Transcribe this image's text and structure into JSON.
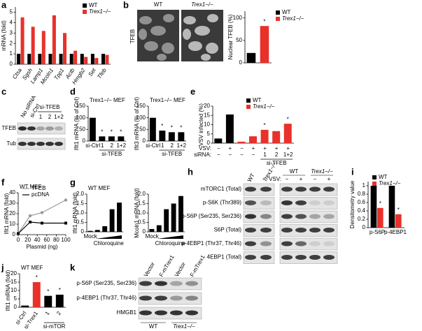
{
  "panels": [
    "a",
    "b",
    "c",
    "d",
    "e",
    "f",
    "g",
    "h",
    "i",
    "j",
    "k"
  ],
  "images": {
    "row_label": "TFEB",
    "labels": [
      "WT",
      "Trex1−/−"
    ]
  },
  "blots": {
    "c": {
      "columns": [
        "No siRNA",
        "si-Ctrl",
        "1",
        "2",
        "1+2"
      ],
      "group": "si-TFEB",
      "rows": [
        "TFEB",
        "Tub"
      ]
    },
    "h": {
      "rows": [
        "mTORC1 (Total)",
        "p-S6K (Thr389)",
        "p-S6P (Ser235, Ser236)",
        "S6P (Total)",
        "p-4EBP1 (Thr37, Thr46)",
        "4EBP1 (Total)"
      ],
      "left_columns": [
        "WT",
        "Trex1−/−"
      ],
      "right_columns": [
        "WT",
        "Trex1−/−"
      ],
      "treatment_label": "VSV:",
      "treatment": [
        "−",
        "+",
        "−",
        "+"
      ]
    },
    "k": {
      "columns": [
        "Vector",
        "F-mTrex1",
        "Vector",
        "F-mTrex1"
      ],
      "groups": [
        "WT",
        "Trex1−/−"
      ],
      "rows": [
        "p-S6P (Ser235, Ser236)",
        "p-4EBP1 (Thr37, Thr46)",
        "HMGB1"
      ]
    }
  },
  "chart_data": [
    {
      "type": "bar",
      "ylabel": "mRNA (fold)",
      "categories": [
        "Ctsa",
        "Sgsh",
        "Lamp1",
        "Mcoln1",
        "Tpp1",
        "Actb",
        "Hmgb2",
        "Set",
        "Tfeb"
      ],
      "series": [
        {
          "name": "WT",
          "color": "#000000",
          "values": [
            1,
            1,
            1,
            1,
            1,
            1,
            1,
            1,
            1
          ]
        },
        {
          "name": "Trex1−/−",
          "color": "#e8312a",
          "values": [
            4.5,
            3.6,
            3.2,
            4.7,
            3.0,
            1.3,
            0.7,
            0.6,
            0.9
          ]
        }
      ],
      "ylim": [
        0,
        5.5
      ],
      "yticks": [
        0,
        1,
        2,
        3,
        4,
        5
      ]
    },
    {
      "type": "bar",
      "ylabel": "Nuclear TFEB (%)",
      "categories": [
        null,
        null
      ],
      "series": [
        {
          "name": "WT",
          "color": "#000000",
          "values": [
            22,
            null
          ]
        },
        {
          "name": "Trex1−/−",
          "color": "#e8312a",
          "values": [
            null,
            82
          ],
          "stars": [
            null,
            "*"
          ]
        }
      ],
      "ylim": [
        0,
        115
      ],
      "yticks": [
        0,
        50,
        100
      ]
    },
    {
      "type": "bar",
      "title": "Trex1−/− MEF",
      "ylabel": "Ifit1 mRNA (% of Ctrl)",
      "categories": [
        "si-Ctrl",
        "1",
        "2",
        "1+2"
      ],
      "group_label": "si-TFEB",
      "series": [
        {
          "color": "#000000",
          "values": [
            100,
            20,
            20,
            20
          ],
          "stars": [
            null,
            "*",
            "*",
            "*"
          ]
        }
      ],
      "ylim": [
        0,
        150
      ],
      "yticks": [
        0,
        50,
        100,
        150
      ]
    },
    {
      "type": "bar",
      "title": "Trex1−/− MEF",
      "ylabel": "Ifit3 mRNA (% of Ctrl)",
      "categories": [
        "si-Ctrl",
        "1",
        "2",
        "1+2"
      ],
      "group_label": "si-TFEB",
      "series": [
        {
          "color": "#000000",
          "values": [
            100,
            45,
            38,
            38
          ],
          "stars": [
            null,
            "*",
            "*",
            "*"
          ]
        }
      ],
      "ylim": [
        0,
        150
      ],
      "yticks": [
        0,
        50,
        100,
        150
      ]
    },
    {
      "type": "bar",
      "ylabel": "VSV infected (%)",
      "vsv_label": "VSV:",
      "vsv": [
        "−",
        "+",
        "−",
        "+",
        "+",
        "+",
        "+"
      ],
      "category_label": "siRNA:",
      "categories": [
        "−",
        "−",
        "−",
        "−",
        "1",
        "2",
        "1+2"
      ],
      "group_label": "si-TFEB",
      "series": [
        {
          "name": "WT",
          "color": "#000000",
          "values": [
            2.5,
            15.5,
            null,
            null,
            null,
            null,
            null
          ]
        },
        {
          "name": "Trex1−/−",
          "color": "#e8312a",
          "values": [
            null,
            null,
            0.8,
            3.7,
            7.2,
            6.5,
            10.5
          ],
          "stars": [
            null,
            null,
            null,
            null,
            "*",
            null,
            "*"
          ]
        }
      ],
      "ylim": [
        0,
        20
      ],
      "yticks": [
        0,
        5,
        10,
        15,
        20
      ]
    },
    {
      "type": "line",
      "title": "WT MEF",
      "ylabel": "Ifit1 mRNA (fold)",
      "xlabel": "Plasmid (ng)",
      "series": [
        {
          "name": "TFEB",
          "color": "#999999",
          "marker": "circle",
          "x": [
            0,
            25,
            50,
            100
          ],
          "values": [
            1,
            18,
            21,
            33
          ]
        },
        {
          "name": "pcDNA",
          "color": "#000000",
          "marker": "square",
          "x": [
            0,
            25,
            50,
            100
          ],
          "values": [
            1,
            12,
            11,
            11
          ]
        }
      ],
      "xlim": [
        0,
        100
      ],
      "xticks": [
        0,
        20,
        40,
        60,
        80,
        100
      ],
      "ylim": [
        0,
        40
      ],
      "yticks": [
        0,
        10,
        20,
        30,
        40
      ]
    },
    {
      "type": "bar",
      "title": "WT MEF",
      "ylabel": "Ifit1 mRNA (fold)",
      "categories": [
        "Mock",
        null,
        null,
        null,
        null
      ],
      "group_label": "Chloroquine",
      "series": [
        {
          "color": "#000000",
          "values": [
            0.05,
            0.1,
            0.3,
            1.2,
            1.55
          ]
        }
      ],
      "ylim": [
        0,
        2
      ],
      "yticks": [
        0,
        0.5,
        {
          "value": 1,
          "label": "1.0"
        },
        1.5,
        {
          "value": 2,
          "label": "2.0"
        }
      ]
    },
    {
      "type": "bar",
      "ylabel": "Mcoln1 mRNA (fold)",
      "categories": [
        "Mock",
        null,
        null,
        null,
        null
      ],
      "group_label": "Chloroquine",
      "series": [
        {
          "color": "#000000",
          "values": [
            0.15,
            0.35,
            1.2,
            1.5,
            1.9
          ]
        }
      ],
      "ylim": [
        0,
        2
      ],
      "yticks": [
        0,
        0.5,
        {
          "value": 1,
          "label": "1.0"
        },
        1.5,
        {
          "value": 2,
          "label": "2.0"
        }
      ]
    },
    {
      "type": "bar",
      "ylabel": "Densitometry value",
      "categories": [
        "p-S6P",
        "p-4EBP1"
      ],
      "series": [
        {
          "name": "WT",
          "color": "#000000",
          "values": [
            1,
            1
          ]
        },
        {
          "name": "Trex1−/−",
          "color": "#e8312a",
          "values": [
            0.47,
            0.32
          ],
          "stars": [
            "*",
            "*"
          ]
        }
      ],
      "ylim": [
        0,
        1.1
      ],
      "yticks": [
        0,
        0.2,
        0.4,
        0.6,
        0.8,
        1
      ]
    },
    {
      "type": "bar",
      "title": "WT MEF",
      "ylabel": "Ifit1 mRNA (fold)",
      "categories": [
        "si-Ctrl",
        "si-Trex1",
        "1",
        "2"
      ],
      "group_label": "si-mTOR",
      "series": [
        {
          "color": "#000000",
          "values": [
            1,
            null,
            6.8,
            7.5
          ],
          "stars": [
            null,
            null,
            "*",
            "*"
          ]
        },
        {
          "color": "#e8312a",
          "values": [
            null,
            15,
            null,
            null
          ],
          "stars": [
            null,
            "*",
            null,
            null
          ]
        }
      ],
      "ylim": [
        0,
        20
      ],
      "yticks": [
        0,
        5,
        10,
        15,
        20
      ]
    }
  ]
}
